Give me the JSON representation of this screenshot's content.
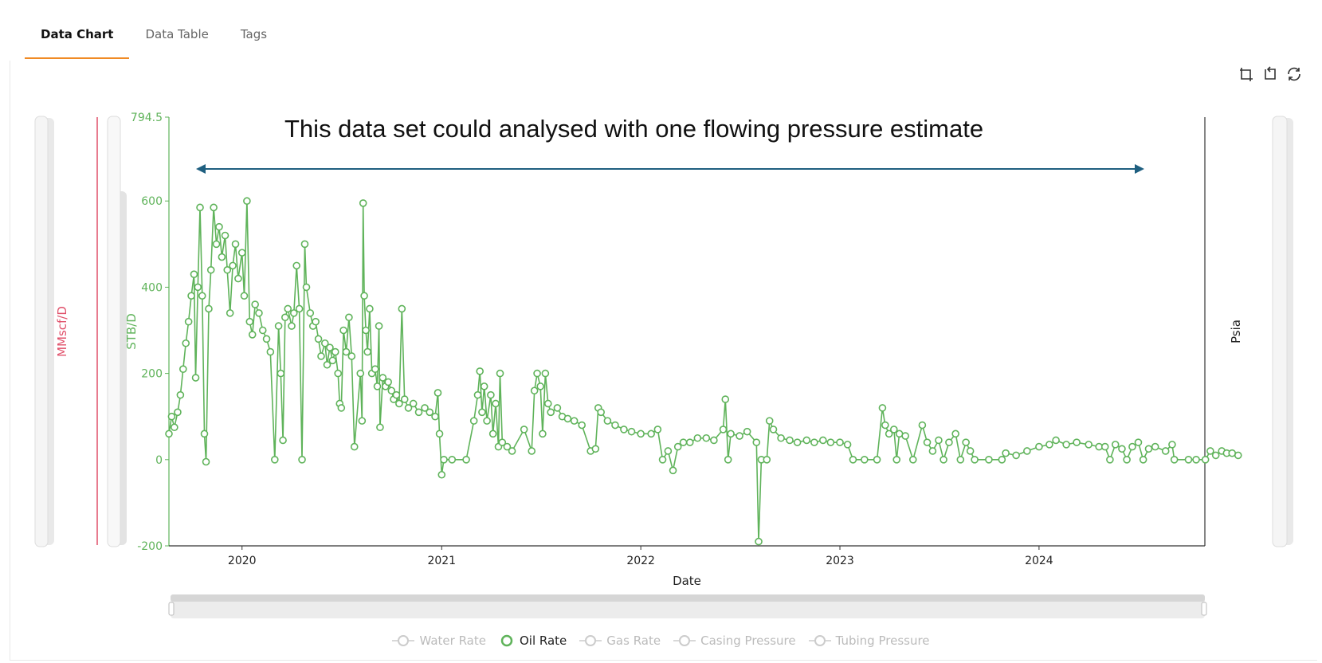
{
  "tabs": [
    {
      "label": "Data Chart",
      "active": true
    },
    {
      "label": "Data Table",
      "active": false
    },
    {
      "label": "Tags",
      "active": false
    }
  ],
  "toolbar": {
    "icons": [
      "zoom-in-icon",
      "zoom-undo-icon",
      "restore-icon"
    ]
  },
  "annotation": "This data set could analysed with one flowing pressure estimate",
  "colors": {
    "oil": "#5fb35a",
    "gas": "#e0506a",
    "axis": "#333333",
    "tab_accent": "#f08a24",
    "arrow": "#1f5f80",
    "legend_inactive": "#bbbbbb"
  },
  "legend": [
    {
      "label": "Water Rate",
      "active": false,
      "icon": "line-circle-icon"
    },
    {
      "label": "Oil Rate",
      "active": true,
      "icon": "circle-icon"
    },
    {
      "label": "Gas Rate",
      "active": false,
      "icon": "line-circle-icon"
    },
    {
      "label": "Casing Pressure",
      "active": false,
      "icon": "line-circle-icon"
    },
    {
      "label": "Tubing Pressure",
      "active": false,
      "icon": "line-circle-icon"
    }
  ],
  "chart_data": {
    "type": "line",
    "xlabel": "Date",
    "ylabel_left_outer": "MMscf/D",
    "ylabel_left_inner": "STB/D",
    "ylabel_right": "Psia",
    "ylim": [
      -200,
      794.5
    ],
    "yticks": [
      "794.5",
      "600",
      "400",
      "200",
      "0",
      "-200"
    ],
    "xlim": [
      "2019-08-20",
      "2024-10-31"
    ],
    "xticks": [
      "2020",
      "2021",
      "2022",
      "2023",
      "2024"
    ],
    "series": [
      {
        "name": "Oil Rate",
        "points": [
          [
            "2019-08-20",
            60
          ],
          [
            "2019-08-25",
            100
          ],
          [
            "2019-08-30",
            75
          ],
          [
            "2019-09-05",
            110
          ],
          [
            "2019-09-10",
            150
          ],
          [
            "2019-09-15",
            210
          ],
          [
            "2019-09-20",
            270
          ],
          [
            "2019-09-25",
            320
          ],
          [
            "2019-09-30",
            380
          ],
          [
            "2019-10-05",
            430
          ],
          [
            "2019-10-08",
            190
          ],
          [
            "2019-10-12",
            400
          ],
          [
            "2019-10-16",
            585
          ],
          [
            "2019-10-20",
            380
          ],
          [
            "2019-10-24",
            60
          ],
          [
            "2019-10-27",
            -5
          ],
          [
            "2019-11-01",
            350
          ],
          [
            "2019-11-05",
            440
          ],
          [
            "2019-11-10",
            585
          ],
          [
            "2019-11-15",
            500
          ],
          [
            "2019-11-20",
            540
          ],
          [
            "2019-11-25",
            470
          ],
          [
            "2019-12-01",
            520
          ],
          [
            "2019-12-05",
            440
          ],
          [
            "2019-12-10",
            340
          ],
          [
            "2019-12-15",
            450
          ],
          [
            "2019-12-20",
            500
          ],
          [
            "2019-12-25",
            420
          ],
          [
            "2020-01-01",
            480
          ],
          [
            "2020-01-05",
            380
          ],
          [
            "2020-01-10",
            600
          ],
          [
            "2020-01-15",
            320
          ],
          [
            "2020-01-20",
            290
          ],
          [
            "2020-01-25",
            360
          ],
          [
            "2020-02-01",
            340
          ],
          [
            "2020-02-08",
            300
          ],
          [
            "2020-02-15",
            280
          ],
          [
            "2020-02-22",
            250
          ],
          [
            "2020-03-01",
            0
          ],
          [
            "2020-03-08",
            310
          ],
          [
            "2020-03-12",
            200
          ],
          [
            "2020-03-16",
            45
          ],
          [
            "2020-03-20",
            330
          ],
          [
            "2020-03-25",
            350
          ],
          [
            "2020-04-01",
            310
          ],
          [
            "2020-04-05",
            340
          ],
          [
            "2020-04-10",
            450
          ],
          [
            "2020-04-15",
            350
          ],
          [
            "2020-04-20",
            0
          ],
          [
            "2020-04-25",
            500
          ],
          [
            "2020-04-28",
            400
          ],
          [
            "2020-05-05",
            340
          ],
          [
            "2020-05-10",
            310
          ],
          [
            "2020-05-15",
            320
          ],
          [
            "2020-05-20",
            280
          ],
          [
            "2020-05-25",
            240
          ],
          [
            "2020-06-01",
            270
          ],
          [
            "2020-06-05",
            220
          ],
          [
            "2020-06-10",
            260
          ],
          [
            "2020-06-15",
            230
          ],
          [
            "2020-06-20",
            250
          ],
          [
            "2020-06-25",
            200
          ],
          [
            "2020-06-28",
            130
          ],
          [
            "2020-07-01",
            120
          ],
          [
            "2020-07-05",
            300
          ],
          [
            "2020-07-10",
            250
          ],
          [
            "2020-07-15",
            330
          ],
          [
            "2020-07-20",
            240
          ],
          [
            "2020-07-25",
            30
          ],
          [
            "2020-08-05",
            200
          ],
          [
            "2020-08-08",
            90
          ],
          [
            "2020-08-10",
            595
          ],
          [
            "2020-08-12",
            380
          ],
          [
            "2020-08-15",
            300
          ],
          [
            "2020-08-18",
            250
          ],
          [
            "2020-08-22",
            350
          ],
          [
            "2020-08-26",
            200
          ],
          [
            "2020-09-01",
            210
          ],
          [
            "2020-09-05",
            170
          ],
          [
            "2020-09-08",
            310
          ],
          [
            "2020-09-10",
            75
          ],
          [
            "2020-09-15",
            190
          ],
          [
            "2020-09-20",
            170
          ],
          [
            "2020-09-25",
            180
          ],
          [
            "2020-10-01",
            160
          ],
          [
            "2020-10-05",
            140
          ],
          [
            "2020-10-10",
            150
          ],
          [
            "2020-10-15",
            130
          ],
          [
            "2020-10-20",
            350
          ],
          [
            "2020-10-25",
            140
          ],
          [
            "2020-11-01",
            120
          ],
          [
            "2020-11-10",
            130
          ],
          [
            "2020-11-20",
            110
          ],
          [
            "2020-12-01",
            120
          ],
          [
            "2020-12-10",
            110
          ],
          [
            "2020-12-20",
            100
          ],
          [
            "2020-12-25",
            155
          ],
          [
            "2020-12-28",
            60
          ],
          [
            "2021-01-01",
            -35
          ],
          [
            "2021-01-05",
            0
          ],
          [
            "2021-01-20",
            0
          ],
          [
            "2021-02-15",
            0
          ],
          [
            "2021-03-01",
            90
          ],
          [
            "2021-03-08",
            150
          ],
          [
            "2021-03-12",
            205
          ],
          [
            "2021-03-16",
            110
          ],
          [
            "2021-03-20",
            170
          ],
          [
            "2021-03-25",
            90
          ],
          [
            "2021-04-01",
            150
          ],
          [
            "2021-04-05",
            60
          ],
          [
            "2021-04-10",
            130
          ],
          [
            "2021-04-15",
            30
          ],
          [
            "2021-04-18",
            200
          ],
          [
            "2021-04-22",
            40
          ],
          [
            "2021-05-01",
            30
          ],
          [
            "2021-05-10",
            20
          ],
          [
            "2021-06-01",
            70
          ],
          [
            "2021-06-15",
            20
          ],
          [
            "2021-06-20",
            160
          ],
          [
            "2021-06-25",
            200
          ],
          [
            "2021-07-01",
            170
          ],
          [
            "2021-07-05",
            60
          ],
          [
            "2021-07-10",
            200
          ],
          [
            "2021-07-15",
            130
          ],
          [
            "2021-07-20",
            110
          ],
          [
            "2021-08-01",
            120
          ],
          [
            "2021-08-10",
            100
          ],
          [
            "2021-08-20",
            95
          ],
          [
            "2021-09-01",
            90
          ],
          [
            "2021-09-15",
            80
          ],
          [
            "2021-10-01",
            20
          ],
          [
            "2021-10-10",
            25
          ],
          [
            "2021-10-15",
            120
          ],
          [
            "2021-10-20",
            110
          ],
          [
            "2021-11-01",
            90
          ],
          [
            "2021-11-15",
            80
          ],
          [
            "2021-12-01",
            70
          ],
          [
            "2021-12-15",
            65
          ],
          [
            "2022-01-01",
            60
          ],
          [
            "2022-01-20",
            60
          ],
          [
            "2022-02-01",
            70
          ],
          [
            "2022-02-10",
            0
          ],
          [
            "2022-02-20",
            20
          ],
          [
            "2022-03-01",
            -25
          ],
          [
            "2022-03-10",
            30
          ],
          [
            "2022-03-20",
            40
          ],
          [
            "2022-04-01",
            40
          ],
          [
            "2022-04-15",
            50
          ],
          [
            "2022-05-01",
            50
          ],
          [
            "2022-05-15",
            45
          ],
          [
            "2022-06-01",
            70
          ],
          [
            "2022-06-05",
            140
          ],
          [
            "2022-06-10",
            0
          ],
          [
            "2022-06-15",
            60
          ],
          [
            "2022-07-01",
            55
          ],
          [
            "2022-07-15",
            65
          ],
          [
            "2022-08-01",
            40
          ],
          [
            "2022-08-05",
            -190
          ],
          [
            "2022-08-10",
            0
          ],
          [
            "2022-08-20",
            0
          ],
          [
            "2022-08-25",
            90
          ],
          [
            "2022-09-01",
            70
          ],
          [
            "2022-09-15",
            50
          ],
          [
            "2022-10-01",
            45
          ],
          [
            "2022-10-15",
            40
          ],
          [
            "2022-11-01",
            45
          ],
          [
            "2022-11-15",
            40
          ],
          [
            "2022-12-01",
            45
          ],
          [
            "2022-12-15",
            40
          ],
          [
            "2023-01-01",
            40
          ],
          [
            "2023-01-15",
            35
          ],
          [
            "2023-01-25",
            0
          ],
          [
            "2023-02-15",
            0
          ],
          [
            "2023-03-10",
            0
          ],
          [
            "2023-03-20",
            120
          ],
          [
            "2023-03-25",
            80
          ],
          [
            "2023-04-01",
            60
          ],
          [
            "2023-04-10",
            70
          ],
          [
            "2023-04-15",
            0
          ],
          [
            "2023-04-20",
            60
          ],
          [
            "2023-05-01",
            55
          ],
          [
            "2023-05-15",
            0
          ],
          [
            "2023-06-01",
            80
          ],
          [
            "2023-06-10",
            40
          ],
          [
            "2023-06-20",
            20
          ],
          [
            "2023-07-01",
            45
          ],
          [
            "2023-07-10",
            0
          ],
          [
            "2023-07-20",
            40
          ],
          [
            "2023-08-01",
            60
          ],
          [
            "2023-08-10",
            0
          ],
          [
            "2023-08-20",
            40
          ],
          [
            "2023-08-28",
            20
          ],
          [
            "2023-09-05",
            0
          ],
          [
            "2023-10-01",
            0
          ],
          [
            "2023-10-25",
            0
          ],
          [
            "2023-11-01",
            15
          ],
          [
            "2023-11-20",
            10
          ],
          [
            "2023-12-10",
            20
          ],
          [
            "2024-01-01",
            30
          ],
          [
            "2024-01-20",
            35
          ],
          [
            "2024-02-01",
            45
          ],
          [
            "2024-02-20",
            35
          ],
          [
            "2024-03-10",
            40
          ],
          [
            "2024-04-01",
            35
          ],
          [
            "2024-04-20",
            30
          ],
          [
            "2024-05-01",
            30
          ],
          [
            "2024-05-10",
            0
          ],
          [
            "2024-05-20",
            35
          ],
          [
            "2024-06-01",
            25
          ],
          [
            "2024-06-10",
            0
          ],
          [
            "2024-06-20",
            30
          ],
          [
            "2024-07-01",
            40
          ],
          [
            "2024-07-10",
            0
          ],
          [
            "2024-07-20",
            25
          ],
          [
            "2024-08-01",
            30
          ],
          [
            "2024-08-20",
            20
          ],
          [
            "2024-09-01",
            35
          ],
          [
            "2024-09-05",
            0
          ],
          [
            "2024-10-01",
            0
          ],
          [
            "2024-10-15",
            0
          ],
          [
            "2024-11-01",
            0
          ],
          [
            "2024-11-10",
            20
          ],
          [
            "2024-11-20",
            10
          ],
          [
            "2024-12-01",
            20
          ],
          [
            "2024-12-10",
            15
          ],
          [
            "2024-12-20",
            15
          ],
          [
            "2024-12-31",
            10
          ]
        ]
      }
    ]
  }
}
